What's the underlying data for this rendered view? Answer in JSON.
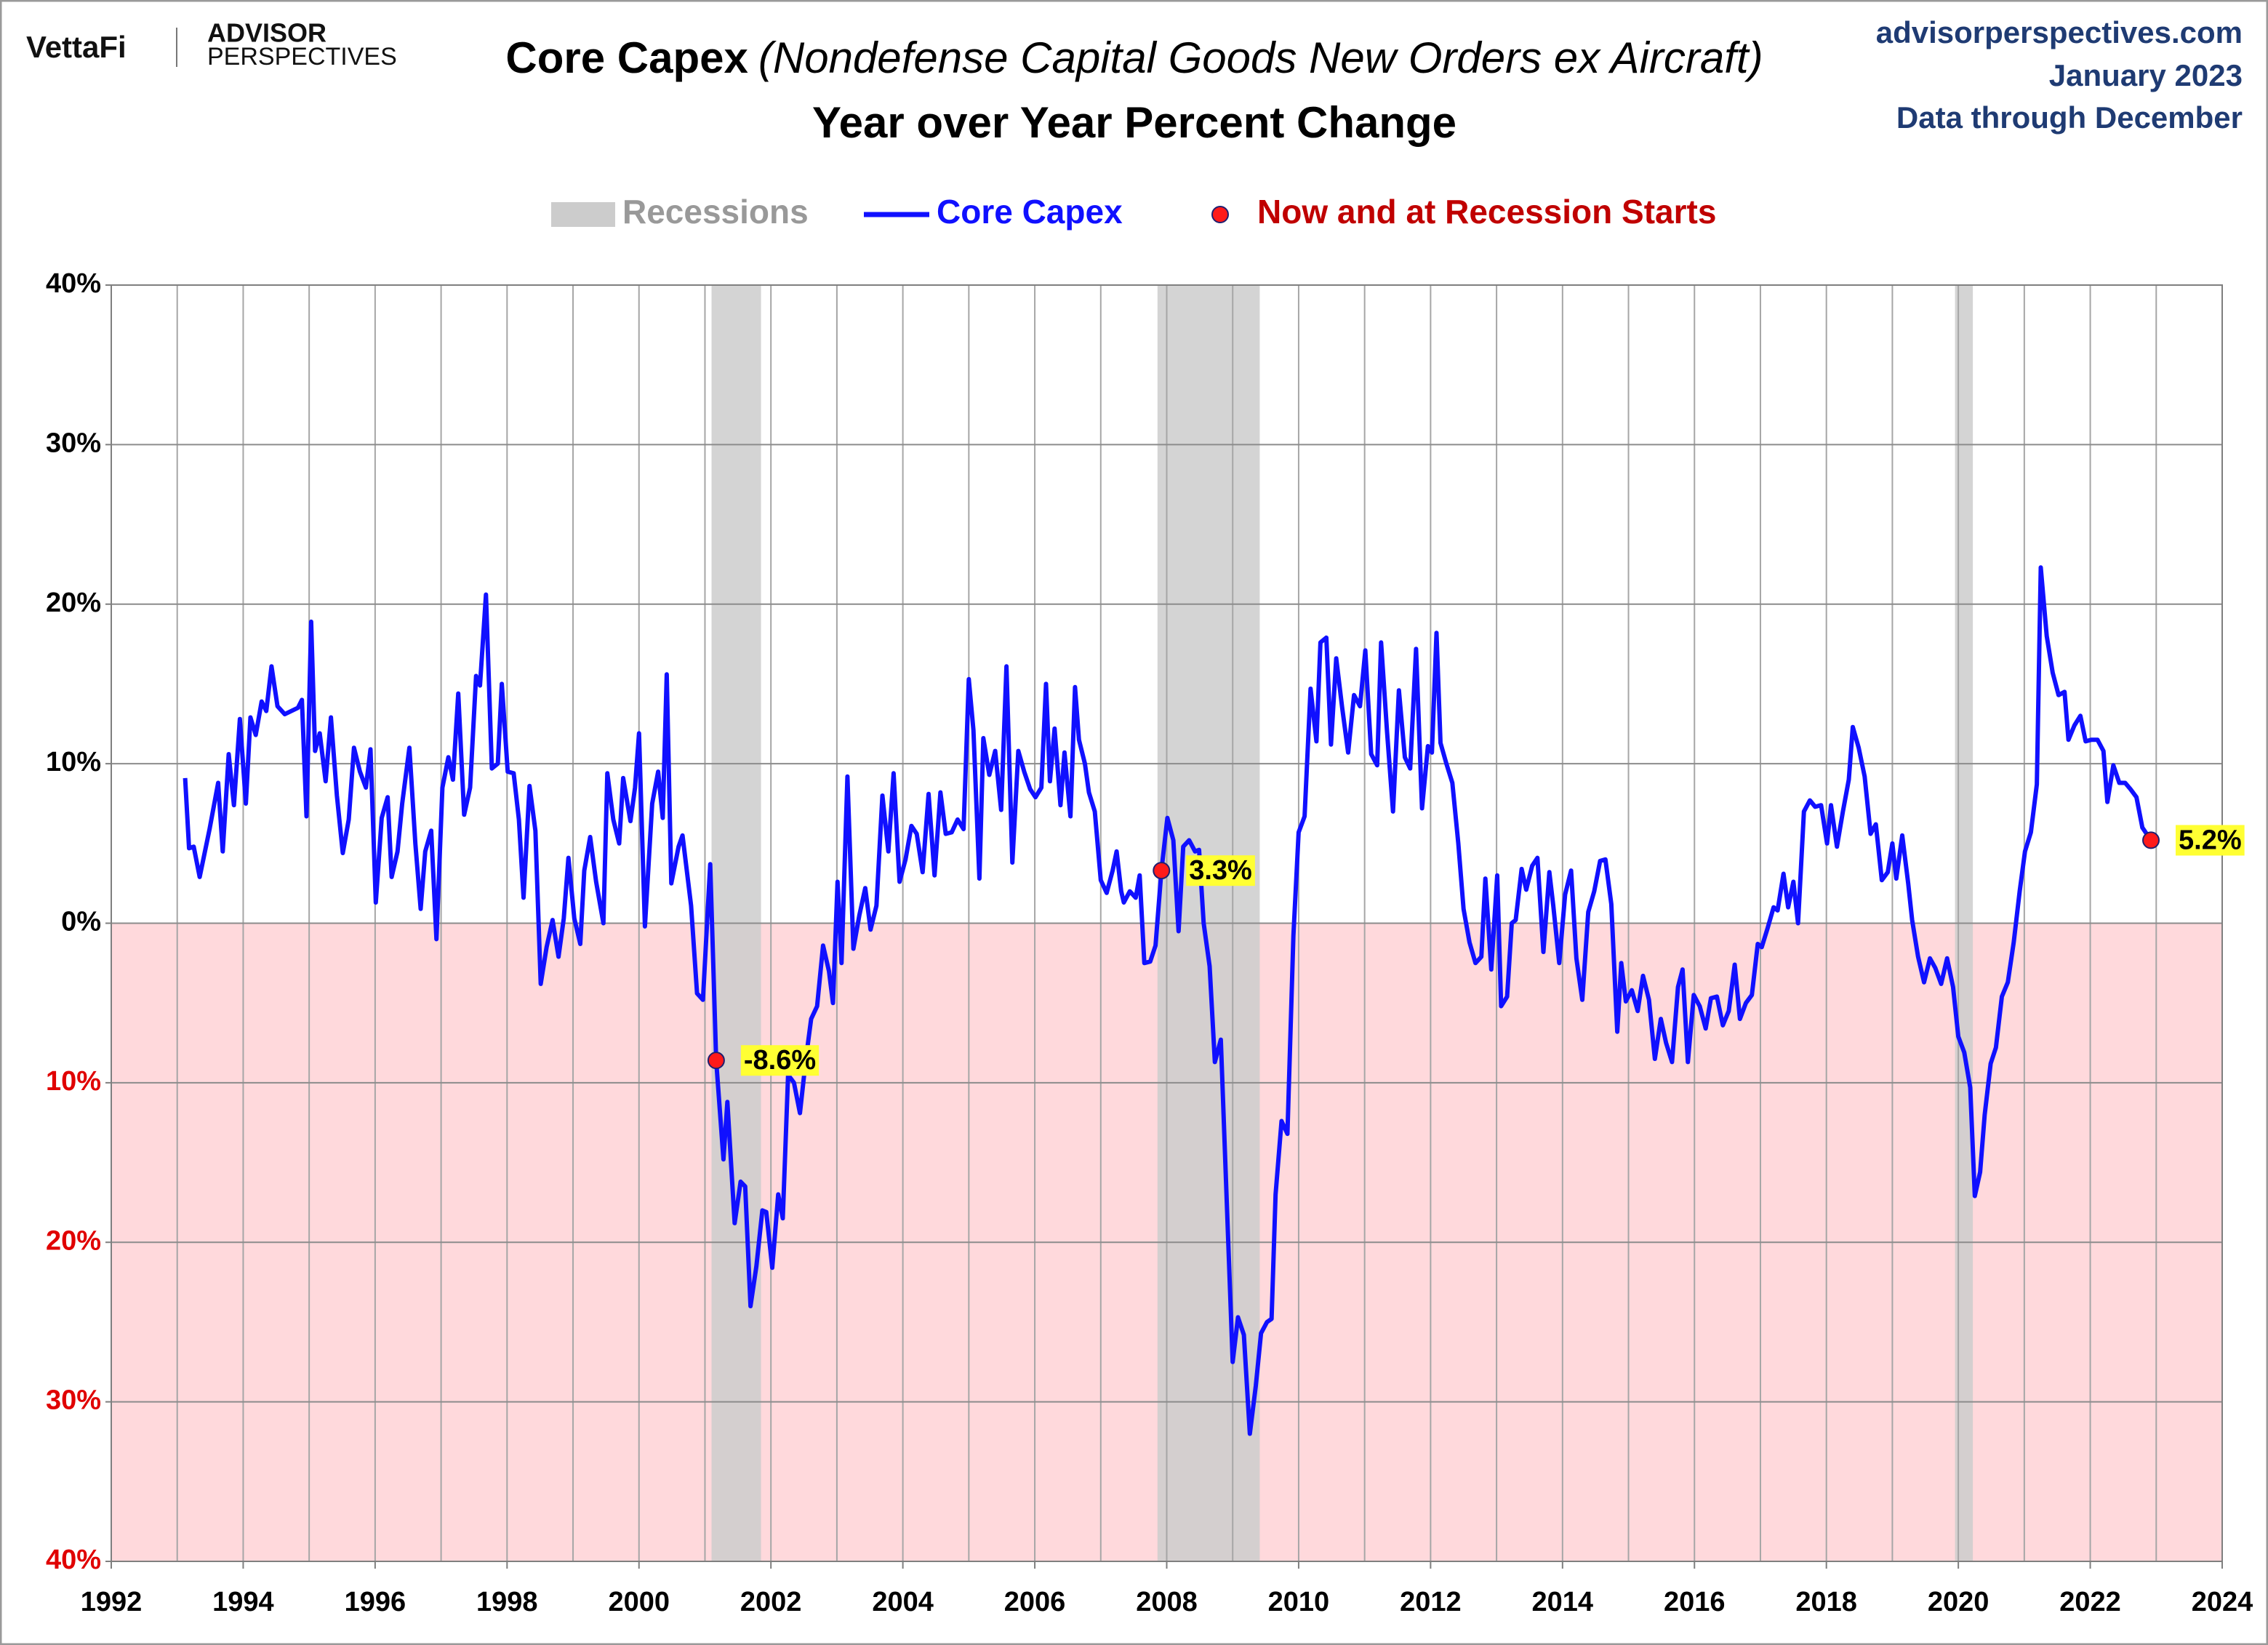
{
  "header": {
    "logo": "VettaFi",
    "brand_top": "ADVISOR",
    "brand_bottom": "PERSPECTIVES",
    "site": "advisorperspectives.com",
    "date": "January 2023",
    "note": "Data through December"
  },
  "chart_data": {
    "type": "line",
    "title": "Core Capex",
    "title_note": "(Nondefense Capital Goods New Orders ex Aircraft)",
    "subtitle": "Year over Year Percent Change",
    "xlim": [
      1992,
      2024
    ],
    "xticks": [
      1992,
      1994,
      1996,
      1998,
      2000,
      2002,
      2004,
      2006,
      2008,
      2010,
      2012,
      2014,
      2016,
      2018,
      2020,
      2022,
      2024
    ],
    "ylim": [
      -40,
      40
    ],
    "yticks": [
      {
        "value": -40,
        "label": "40%"
      },
      {
        "value": -30,
        "label": "30%"
      },
      {
        "value": -20,
        "label": "20%"
      },
      {
        "value": -10,
        "label": "10%"
      },
      {
        "value": 0,
        "label": "0%"
      },
      {
        "value": 10,
        "label": "10%"
      },
      {
        "value": 20,
        "label": "20%"
      },
      {
        "value": 30,
        "label": "30%"
      },
      {
        "value": 40,
        "label": "40%"
      }
    ],
    "grid": true,
    "negative_shade": "#ffd9dc",
    "negative_tick_color": "#e00000",
    "recessions": {
      "name": "Recessions",
      "color": "#cccccc",
      "ranges": [
        [
          2001.1,
          2001.85
        ],
        [
          2007.86,
          2009.41
        ],
        [
          2019.95,
          2020.22
        ]
      ]
    },
    "series": [
      {
        "name": "Core Capex",
        "color": "#1010ff",
        "x": [
          1993.12,
          1993.18,
          1993.25,
          1993.34,
          1993.49,
          1993.62,
          1993.69,
          1993.78,
          1993.86,
          1993.95,
          1994.04,
          1994.11,
          1994.19,
          1994.28,
          1994.35,
          1994.43,
          1994.52,
          1994.63,
          1994.83,
          1994.89,
          1994.96,
          1995.03,
          1995.09,
          1995.16,
          1995.25,
          1995.33,
          1995.42,
          1995.51,
          1995.6,
          1995.68,
          1995.77,
          1995.86,
          1995.93,
          1996.01,
          1996.1,
          1996.19,
          1996.25,
          1996.34,
          1996.41,
          1996.52,
          1996.61,
          1996.69,
          1996.76,
          1996.85,
          1996.93,
          1997.02,
          1997.11,
          1997.18,
          1997.26,
          1997.35,
          1997.44,
          1997.53,
          1997.59,
          1997.68,
          1997.77,
          1997.86,
          1997.92,
          1998.01,
          1998.1,
          1998.18,
          1998.25,
          1998.34,
          1998.43,
          1998.51,
          1998.6,
          1998.69,
          1998.78,
          1998.86,
          1998.93,
          1999.02,
          1999.11,
          1999.17,
          1999.26,
          1999.35,
          1999.46,
          1999.52,
          1999.61,
          1999.7,
          1999.76,
          1999.87,
          1999.94,
          2000.0,
          2000.09,
          2000.2,
          2000.29,
          2000.36,
          2000.42,
          2000.49,
          2000.6,
          2000.66,
          2000.79,
          2000.88,
          2000.97,
          2001.08,
          2001.17,
          2001.28,
          2001.34,
          2001.45,
          2001.54,
          2001.61,
          2001.69,
          2001.78,
          2001.87,
          2001.93,
          2002.02,
          2002.11,
          2002.18,
          2002.26,
          2002.35,
          2002.44,
          2002.53,
          2002.61,
          2002.7,
          2002.79,
          2002.88,
          2002.94,
          2003.01,
          2003.07,
          2003.16,
          2003.25,
          2003.34,
          2003.43,
          2003.51,
          2003.6,
          2003.69,
          2003.78,
          2003.86,
          2003.95,
          2004.04,
          2004.13,
          2004.21,
          2004.3,
          2004.39,
          2004.48,
          2004.57,
          2004.65,
          2004.74,
          2004.83,
          2004.92,
          2005.0,
          2005.07,
          2005.16,
          2005.22,
          2005.31,
          2005.4,
          2005.49,
          2005.57,
          2005.66,
          2005.75,
          2005.84,
          2005.93,
          2006.01,
          2006.1,
          2006.17,
          2006.23,
          2006.3,
          2006.39,
          2006.45,
          2006.54,
          2006.61,
          2006.67,
          2006.76,
          2006.82,
          2006.91,
          2007.0,
          2007.09,
          2007.18,
          2007.24,
          2007.31,
          2007.35,
          2007.44,
          2007.53,
          2007.59,
          2007.66,
          2007.75,
          2007.83,
          2007.92,
          2008.01,
          2008.1,
          2008.18,
          2008.25,
          2008.34,
          2008.43,
          2008.49,
          2008.56,
          2008.65,
          2008.73,
          2008.82,
          2008.91,
          2009.0,
          2009.08,
          2009.17,
          2009.26,
          2009.35,
          2009.43,
          2009.52,
          2009.59,
          2009.65,
          2009.74,
          2009.83,
          2009.92,
          2010.0,
          2010.09,
          2010.18,
          2010.27,
          2010.33,
          2010.42,
          2010.49,
          2010.57,
          2010.66,
          2010.75,
          2010.84,
          2010.93,
          2011.01,
          2011.1,
          2011.19,
          2011.25,
          2011.34,
          2011.43,
          2011.52,
          2011.61,
          2011.69,
          2011.78,
          2011.87,
          2011.96,
          2012.02,
          2012.09,
          2012.15,
          2012.24,
          2012.33,
          2012.42,
          2012.5,
          2012.59,
          2012.68,
          2012.77,
          2012.83,
          2012.92,
          2013.01,
          2013.07,
          2013.16,
          2013.23,
          2013.29,
          2013.38,
          2013.45,
          2013.54,
          2013.62,
          2013.71,
          2013.8,
          2013.86,
          2013.95,
          2014.04,
          2014.13,
          2014.21,
          2014.3,
          2014.39,
          2014.48,
          2014.57,
          2014.65,
          2014.74,
          2014.83,
          2014.89,
          2014.96,
          2015.05,
          2015.14,
          2015.22,
          2015.31,
          2015.4,
          2015.49,
          2015.57,
          2015.66,
          2015.75,
          2015.82,
          2015.9,
          2015.99,
          2016.08,
          2016.17,
          2016.25,
          2016.34,
          2016.43,
          2016.52,
          2016.61,
          2016.69,
          2016.78,
          2016.87,
          2016.96,
          2017.02,
          2017.11,
          2017.2,
          2017.26,
          2017.35,
          2017.42,
          2017.5,
          2017.57,
          2017.66,
          2017.75,
          2017.83,
          2017.92,
          2018.01,
          2018.07,
          2018.16,
          2018.25,
          2018.34,
          2018.4,
          2018.49,
          2018.58,
          2018.67,
          2018.75,
          2018.84,
          2018.93,
          2019.0,
          2019.06,
          2019.15,
          2019.24,
          2019.3,
          2019.39,
          2019.48,
          2019.57,
          2019.65,
          2019.74,
          2019.83,
          2019.92,
          2020.0,
          2020.09,
          2020.18,
          2020.25,
          2020.33,
          2020.4,
          2020.49,
          2020.57,
          2020.66,
          2020.75,
          2020.84,
          2020.93,
          2021.01,
          2021.1,
          2021.19,
          2021.25,
          2021.34,
          2021.43,
          2021.52,
          2021.61,
          2021.67,
          2021.76,
          2021.85,
          2021.93,
          2022.02,
          2022.11,
          2022.2,
          2022.26,
          2022.35,
          2022.44,
          2022.53,
          2022.61,
          2022.7,
          2022.79,
          2022.92
        ],
        "values": [
          9.1,
          4.7,
          4.8,
          2.9,
          5.9,
          8.8,
          4.5,
          10.6,
          7.4,
          12.8,
          7.5,
          12.9,
          11.8,
          13.9,
          13.3,
          16.1,
          13.6,
          13.1,
          13.5,
          14.0,
          6.7,
          18.9,
          10.8,
          11.9,
          8.9,
          12.9,
          8.0,
          4.4,
          6.5,
          11.0,
          9.5,
          8.5,
          10.9,
          1.3,
          6.6,
          7.9,
          2.9,
          4.5,
          7.5,
          11.0,
          5.0,
          0.9,
          4.5,
          5.8,
          -1.0,
          8.5,
          10.4,
          9.0,
          14.4,
          6.8,
          8.5,
          15.5,
          14.9,
          20.6,
          9.7,
          10.0,
          15.0,
          9.5,
          9.4,
          6.5,
          1.6,
          8.6,
          5.8,
          -3.8,
          -1.5,
          0.2,
          -2.1,
          0.3,
          4.1,
          0.3,
          -1.3,
          3.3,
          5.4,
          2.6,
          0.0,
          9.4,
          6.5,
          5.0,
          9.1,
          6.4,
          8.5,
          11.9,
          -0.2,
          7.5,
          9.5,
          6.6,
          15.6,
          2.5,
          4.8,
          5.5,
          1.1,
          -4.4,
          -4.8,
          3.7,
          -8.6,
          -14.8,
          -11.2,
          -18.8,
          -16.2,
          -16.5,
          -24.0,
          -21.5,
          -18.0,
          -18.1,
          -21.6,
          -17.0,
          -18.5,
          -9.5,
          -10.0,
          -11.9,
          -8.5,
          -6.0,
          -5.2,
          -1.4,
          -3.0,
          -5.0,
          2.6,
          -2.5,
          9.2,
          -1.6,
          0.5,
          2.2,
          -0.4,
          1.1,
          8.0,
          4.5,
          9.4,
          2.6,
          4.0,
          6.1,
          5.6,
          3.2,
          8.1,
          3.0,
          8.2,
          5.6,
          5.7,
          6.5,
          5.9,
          15.3,
          12.1,
          2.8,
          11.6,
          9.3,
          10.8,
          7.1,
          16.1,
          3.8,
          10.8,
          9.5,
          8.4,
          7.9,
          8.5,
          15.0,
          8.9,
          12.2,
          7.4,
          10.7,
          6.7,
          14.8,
          11.5,
          10.0,
          8.2,
          7.0,
          2.7,
          1.9,
          3.3,
          4.5,
          2.0,
          1.3,
          2.0,
          1.6,
          3.0,
          -2.5,
          -2.4,
          -1.4,
          3.3,
          6.6,
          5.2,
          -0.5,
          4.8,
          5.2,
          4.5,
          4.6,
          0.0,
          -2.7,
          -8.7,
          -7.3,
          -17.5,
          -27.5,
          -24.7,
          -25.8,
          -32.0,
          -29.0,
          -25.7,
          -25.0,
          -24.8,
          -17.0,
          -12.4,
          -13.2,
          -0.8,
          5.7,
          6.7,
          14.7,
          11.4,
          17.6,
          17.9,
          11.2,
          16.6,
          13.5,
          10.7,
          14.3,
          13.6,
          17.1,
          10.6,
          9.9,
          17.6,
          12.0,
          7.0,
          14.6,
          10.4,
          9.7,
          17.2,
          7.2,
          11.1,
          10.7,
          18.2,
          11.3,
          10.0,
          8.8,
          5.0,
          0.9,
          -1.2,
          -2.5,
          -2.1,
          2.8,
          -2.9,
          3.0,
          -5.2,
          -4.6,
          0.0,
          0.2,
          3.4,
          2.1,
          3.6,
          4.1,
          -1.8,
          3.2,
          1.1,
          -2.5,
          1.8,
          3.3,
          -2.2,
          -4.8,
          0.7,
          2.0,
          3.9,
          4.0,
          1.2,
          -6.8,
          -2.5,
          -4.9,
          -4.2,
          -5.5,
          -3.3,
          -4.8,
          -8.5,
          -6.0,
          -7.5,
          -8.7,
          -4.0,
          -2.9,
          -8.7,
          -4.5,
          -5.2,
          -6.6,
          -4.7,
          -4.6,
          -6.4,
          -5.5,
          -2.6,
          -6.0,
          -5.0,
          -4.5,
          -1.3,
          -1.5,
          -0.3,
          1.0,
          0.8,
          3.1,
          1.0,
          2.6,
          0.0,
          7.0,
          7.7,
          7.3,
          7.4,
          5.0,
          7.4,
          4.8,
          7.0,
          9.0,
          12.3,
          11.0,
          9.2,
          5.6,
          6.2,
          2.7,
          3.2,
          5.0,
          2.8,
          5.5,
          2.5,
          0.2,
          -2.1,
          -3.7,
          -2.2,
          -2.8,
          -3.8,
          -2.2,
          -4.0,
          -7.1,
          -8.1,
          -10.3,
          -17.1,
          -15.6,
          -12.0,
          -8.8,
          -7.8,
          -4.6,
          -3.7,
          -1.2,
          2.0,
          4.5,
          5.7,
          8.7,
          22.3,
          18.0,
          15.7,
          14.3,
          14.5,
          11.5,
          12.4,
          13.0,
          11.4,
          11.5,
          11.5,
          10.8,
          7.6,
          9.9,
          8.8,
          8.8,
          8.4,
          7.9,
          6.0,
          5.2
        ]
      },
      {
        "name": "Now and at Recession Starts",
        "color": "#ff1a1a",
        "label_color": "#c00000",
        "label_box": "#ffff33",
        "x": [
          2001.17,
          2007.92,
          2022.92
        ],
        "values": [
          -8.6,
          3.3,
          5.2
        ],
        "value_labels": [
          "-8.6%",
          "3.3%",
          "5.2%"
        ]
      }
    ]
  }
}
